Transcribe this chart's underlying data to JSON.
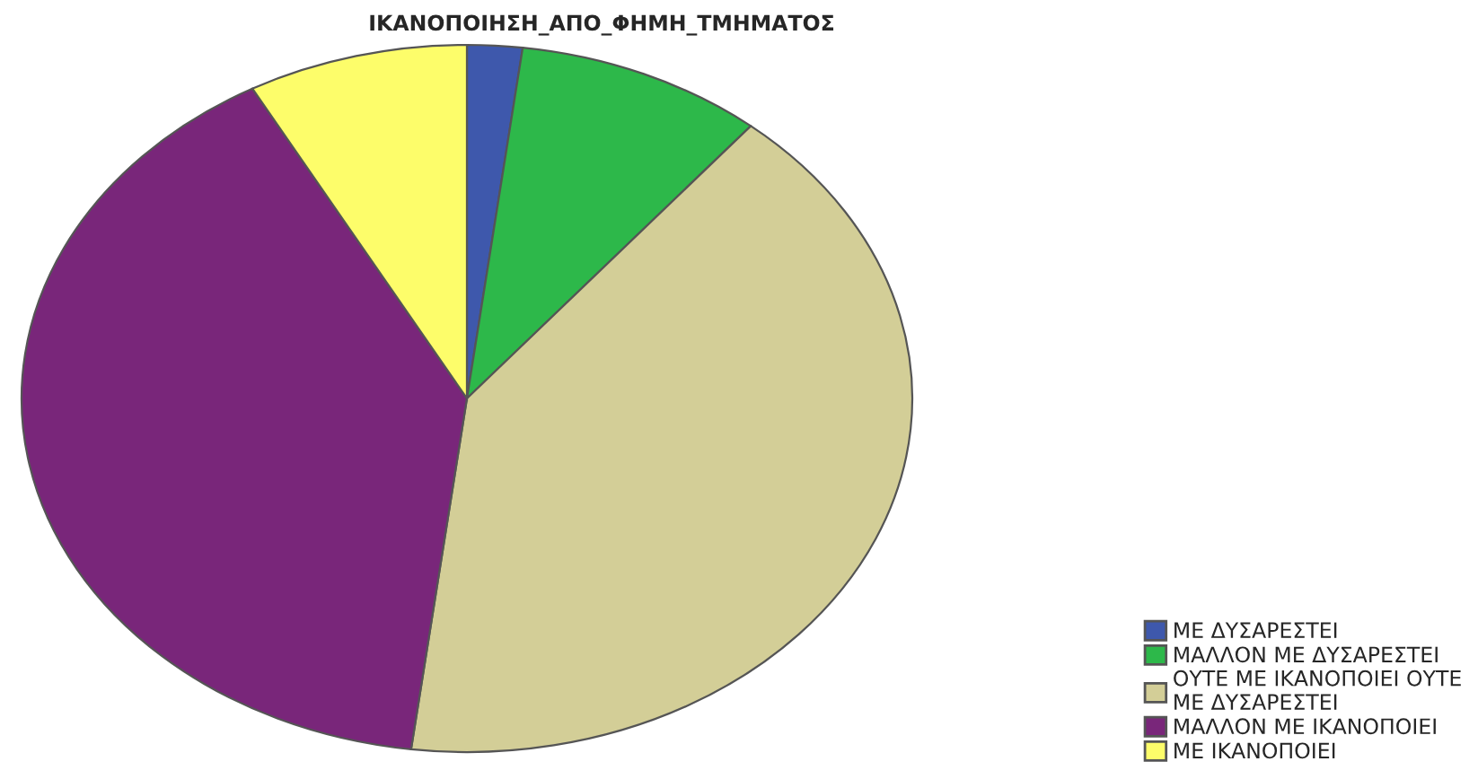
{
  "chart_data": {
    "type": "pie",
    "title": "ΙΚΑΝΟΠΟΙΗΣΗ_ΑΠΟ_ΦΗΜΗ_ΤΜΗΜΑΤΟΣ",
    "categories": [
      "ΜΕ ΔΥΣΑΡΕΣΤΕΙ",
      "ΜΑΛΛΟΝ ΜΕ ΔΥΣΑΡΕΣΤΕΙ",
      "ΟΥΤΕ ΜΕ ΙΚΑΝΟΠΟΙΕΙ ΟΥΤΕ\nΜΕ ΔΥΣΑΡΕΣΤΕΙ",
      "ΜΑΛΛΟΝ ΜΕ ΙΚΑΝΟΠΟΙΕΙ",
      "ΜΕ ΙΚΑΝΟΠΟΙΕΙ"
    ],
    "values": [
      2,
      9,
      41,
      40,
      8
    ],
    "colors": [
      "#3e58ac",
      "#2db84a",
      "#d3ce97",
      "#79267a",
      "#fdfd6a"
    ],
    "legend": "bottom right"
  }
}
